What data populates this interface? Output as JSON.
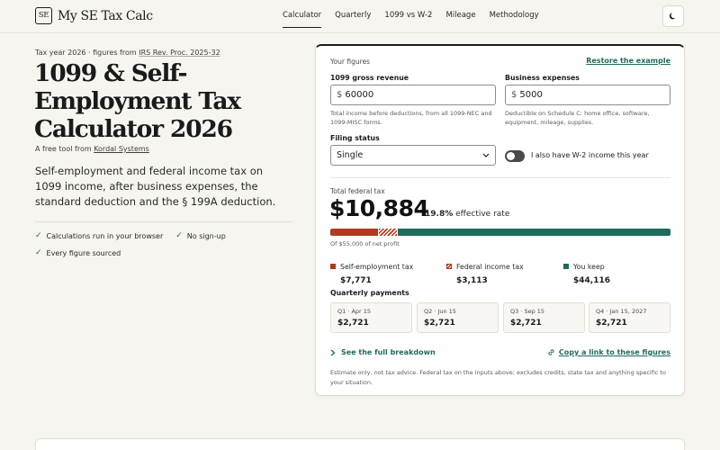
{
  "header": {
    "logo_mark": "SE",
    "app_name": "My SE Tax Calc",
    "nav": [
      "Calculator",
      "Quarterly",
      "1099 vs W-2",
      "Mileage",
      "Methodology"
    ],
    "active_nav": "Calculator",
    "theme_toggle_icon": "moon-icon"
  },
  "hero": {
    "kicker_prefix": "Tax year 2026 · figures from ",
    "kicker_link": "IRS Rev. Proc. 2025-32",
    "title": "1099 & Self-Employment Tax Calculator 2026",
    "byline_prefix": "A free tool from ",
    "byline_link": "Kordal Systems",
    "lede": "Self-employment and federal income tax on 1099 income, after business expenses, the standard deduction and the § 199A deduction.",
    "checks": [
      "Calculations run in your browser",
      "No sign-up",
      "Every figure sourced"
    ]
  },
  "calculator": {
    "section_label": "Your figures",
    "restore_link": "Restore the example",
    "revenue": {
      "label": "1099 gross revenue",
      "currency": "$",
      "value": "60000",
      "help": "Total income before deductions, from all 1099-NEC and 1099-MISC forms."
    },
    "expenses": {
      "label": "Business expenses",
      "currency": "$",
      "value": "5000",
      "help": "Deductible on Schedule C: home office, software, equipment, mileage, supplies."
    },
    "filing": {
      "label": "Filing status",
      "value": "Single"
    },
    "w2_toggle_label": "I also have W-2 income this year",
    "w2_toggle_on": false,
    "results": {
      "total_label": "Total federal tax",
      "total": "$10,884",
      "effective_rate": "19.8%",
      "effective_suffix": " effective rate",
      "of_net": "Of $55,000 of net profit",
      "breakdown": [
        {
          "label": "Self-employment tax",
          "value": "$7,771",
          "amount": 7771,
          "color": "#b03a1e",
          "pattern": "solid"
        },
        {
          "label": "Federal income tax",
          "value": "$3,113",
          "amount": 3113,
          "color": "#b03a1e",
          "pattern": "hatched"
        },
        {
          "label": "You keep",
          "value": "$44,116",
          "amount": 44116,
          "color": "#1f6b5c",
          "pattern": "solid"
        }
      ]
    },
    "quarterly": {
      "label": "Quarterly payments",
      "payments": [
        {
          "due": "Q1 · Apr 15",
          "amount": "$2,721"
        },
        {
          "due": "Q2 · Jun 15",
          "amount": "$2,721"
        },
        {
          "due": "Q3 · Sep 15",
          "amount": "$2,721"
        },
        {
          "due": "Q4 · Jan 15, 2027",
          "amount": "$2,721"
        }
      ]
    },
    "breakdown_link": "See the full breakdown",
    "copy_link": "Copy a link to these figures",
    "disclaimer": "Estimate only, not tax advice. Federal tax on the inputs above; excludes credits, state tax and anything specific to your situation."
  }
}
